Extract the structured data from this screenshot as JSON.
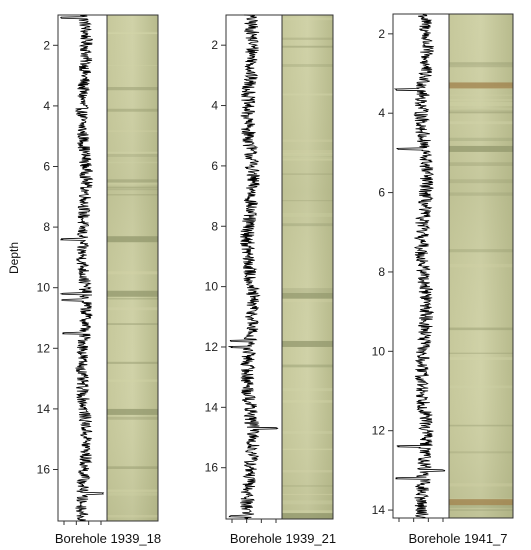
{
  "figure": {
    "y_label": "Depth",
    "colors": {
      "trace": "#000000",
      "axis": "#333333",
      "core_base": "#b5b98a",
      "core_light": "#d2d4a8",
      "core_dark": "#8f946a",
      "core_rust": "#9c7a45"
    }
  },
  "chart_data": [
    {
      "type": "line",
      "caption": "Borehole 1939_18",
      "ylim": [
        17.7,
        1.0
      ],
      "yticks": [
        2,
        4,
        6,
        8,
        10,
        12,
        14,
        16
      ],
      "ytick_labels": [
        "2",
        "4",
        "6",
        "8",
        "10",
        "12",
        "14",
        "16"
      ],
      "grid": false,
      "spikes": [
        {
          "depth": 1.1,
          "dir": -1
        },
        {
          "depth": 8.4,
          "dir": -1
        },
        {
          "depth": 10.2,
          "dir": -1
        },
        {
          "depth": 10.4,
          "dir": -1
        },
        {
          "depth": 11.5,
          "dir": -1
        },
        {
          "depth": 16.8,
          "dir": 1
        }
      ],
      "core_bands": [
        {
          "depth": 8.4,
          "tone": "dark"
        },
        {
          "depth": 10.2,
          "tone": "dark"
        },
        {
          "depth": 14.1,
          "tone": "dark"
        }
      ]
    },
    {
      "type": "line",
      "caption": "Borehole 1939_21",
      "ylim": [
        17.7,
        1.0
      ],
      "yticks": [
        2,
        4,
        6,
        8,
        10,
        12,
        14,
        16
      ],
      "ytick_labels": [
        "2",
        "4",
        "6",
        "8",
        "10",
        "12",
        "14",
        "16"
      ],
      "grid": false,
      "spikes": [
        {
          "depth": 11.8,
          "dir": -1
        },
        {
          "depth": 12.0,
          "dir": -1
        },
        {
          "depth": 14.7,
          "dir": -1
        },
        {
          "depth": 14.7,
          "dir": 1
        },
        {
          "depth": 17.6,
          "dir": -1
        }
      ],
      "core_bands": [
        {
          "depth": 10.3,
          "tone": "dark"
        },
        {
          "depth": 11.9,
          "tone": "dark"
        },
        {
          "depth": 17.6,
          "tone": "dark"
        }
      ]
    },
    {
      "type": "line",
      "caption": "Borehole 1941_7",
      "ylim": [
        14.2,
        1.5
      ],
      "yticks": [
        2,
        4,
        6,
        8,
        10,
        12,
        14
      ],
      "ytick_labels": [
        "2",
        "4",
        "6",
        "8",
        "10",
        "12",
        "14"
      ],
      "grid": false,
      "spikes": [
        {
          "depth": 3.4,
          "dir": -1
        },
        {
          "depth": 4.9,
          "dir": -1
        },
        {
          "depth": 12.4,
          "dir": -1
        },
        {
          "depth": 13.0,
          "dir": 1
        },
        {
          "depth": 13.2,
          "dir": -1
        }
      ],
      "core_bands": [
        {
          "depth": 3.3,
          "tone": "rust"
        },
        {
          "depth": 4.9,
          "tone": "dark"
        },
        {
          "depth": 13.8,
          "tone": "rust"
        }
      ]
    }
  ]
}
